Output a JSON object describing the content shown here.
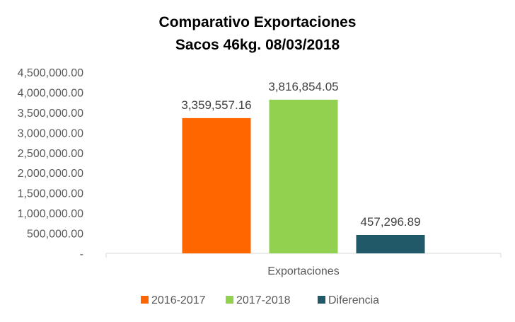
{
  "chart_data": {
    "type": "bar",
    "title_line_1": "Comparativo Exportaciones",
    "title_line_2": "Sacos 46kg. 08/03/2018",
    "category": "Exportaciones",
    "series": [
      {
        "name": "2016-2017",
        "value": 3359557.16,
        "label": "3,359,557.16",
        "color": "#FF6600"
      },
      {
        "name": "2017-2018",
        "value": 3816854.05,
        "label": "3,816,854.05",
        "color": "#92D050"
      },
      {
        "name": "Diferencia",
        "value": 457296.89,
        "label": "457,296.89",
        "color": "#215968"
      }
    ],
    "y_ticks": [
      {
        "value": 0,
        "label": "-"
      },
      {
        "value": 500000,
        "label": "500,000.00"
      },
      {
        "value": 1000000,
        "label": "1,000,000.00"
      },
      {
        "value": 1500000,
        "label": "1,500,000.00"
      },
      {
        "value": 2000000,
        "label": "2,000,000.00"
      },
      {
        "value": 2500000,
        "label": "2,500,000.00"
      },
      {
        "value": 3000000,
        "label": "3,000,000.00"
      },
      {
        "value": 3500000,
        "label": "3,500,000.00"
      },
      {
        "value": 4000000,
        "label": "4,000,000.00"
      },
      {
        "value": 4500000,
        "label": "4,500,000.00"
      }
    ],
    "ylim": [
      0,
      4500000
    ],
    "grid": false,
    "legend_position": "bottom"
  }
}
